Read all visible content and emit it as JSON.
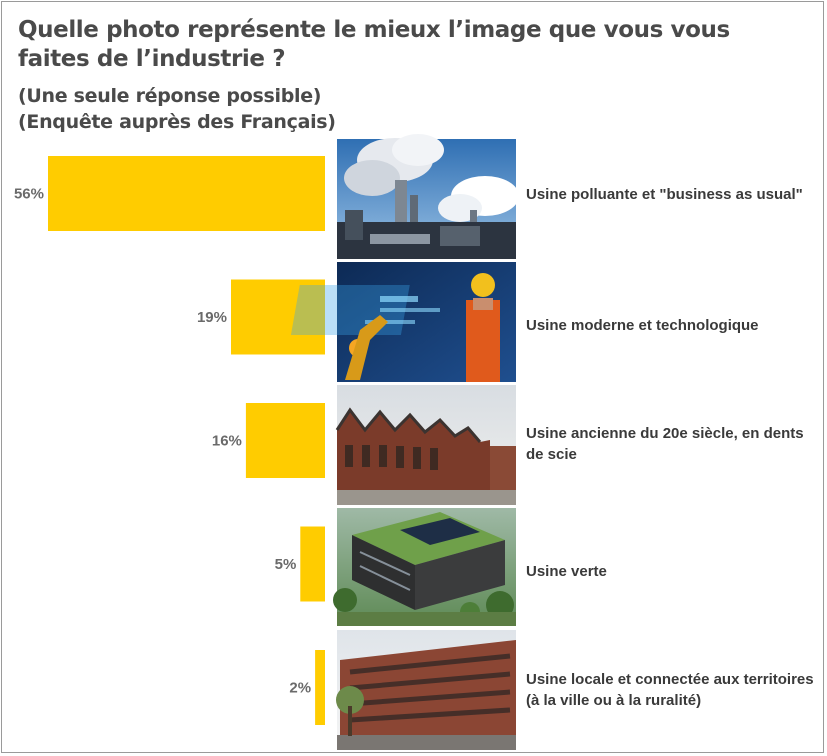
{
  "header": {
    "title": "Quelle photo représente le mieux l’image que vous vous faites de l’industrie ?",
    "subtitle1": "(Une seule réponse possible)",
    "subtitle2": "(Enquête auprès des Français)"
  },
  "chart_data": {
    "type": "bar",
    "orientation": "horizontal",
    "title": "Quelle photo représente le mieux l’image que vous vous faites de l’industrie ?",
    "categories": [
      "Usine polluante et \"business as usual\"",
      "Usine moderne et technologique",
      "Usine ancienne du 20e siècle, en dents de scie",
      "Usine verte",
      "Usine locale et connectée aux territoires (à la ville ou à la ruralité)"
    ],
    "values": [
      56,
      19,
      16,
      5,
      2
    ],
    "data_labels": [
      "56%",
      "19%",
      "16%",
      "5%",
      "2%"
    ],
    "unit": "%",
    "xlim": [
      0,
      56
    ],
    "bar_color": "#FFCC00",
    "photos": [
      "polluting-factory-photo",
      "modern-factory-photo",
      "old-factory-photo",
      "green-factory-photo",
      "local-factory-photo"
    ]
  }
}
